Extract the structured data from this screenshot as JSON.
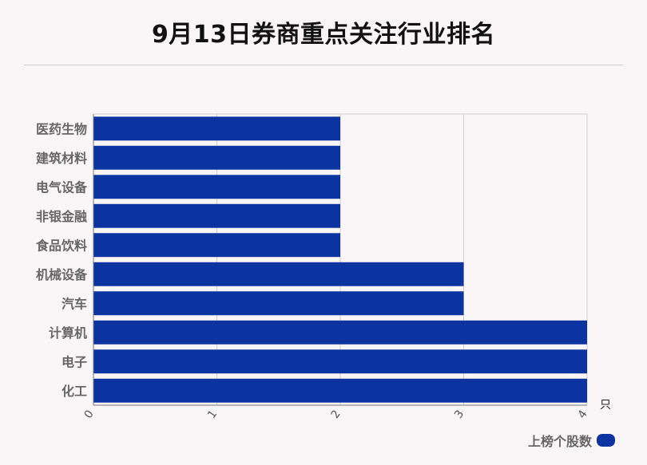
{
  "title": "9月13日券商重点关注行业排名",
  "legend": {
    "label": "上榜个股数"
  },
  "colors": {
    "bar": "#0c34a0",
    "grid": "#d0d0d0",
    "axis": "#777777",
    "label": "#666666"
  },
  "chart_data": {
    "type": "bar",
    "orientation": "horizontal",
    "title": "9月13日券商重点关注行业排名",
    "categories": [
      "医药生物",
      "建筑材料",
      "电气设备",
      "非银金融",
      "食品饮料",
      "机械设备",
      "汽车",
      "计算机",
      "电子",
      "化工"
    ],
    "series": [
      {
        "name": "上榜个股数",
        "values": [
          2,
          2,
          2,
          2,
          2,
          3,
          3,
          4,
          4,
          4
        ]
      }
    ],
    "xlim": [
      0,
      4
    ],
    "xticks": [
      "0",
      "1",
      "2",
      "3",
      "4"
    ],
    "xunit": "只",
    "grid": true,
    "legend_position": "bottom-right"
  }
}
